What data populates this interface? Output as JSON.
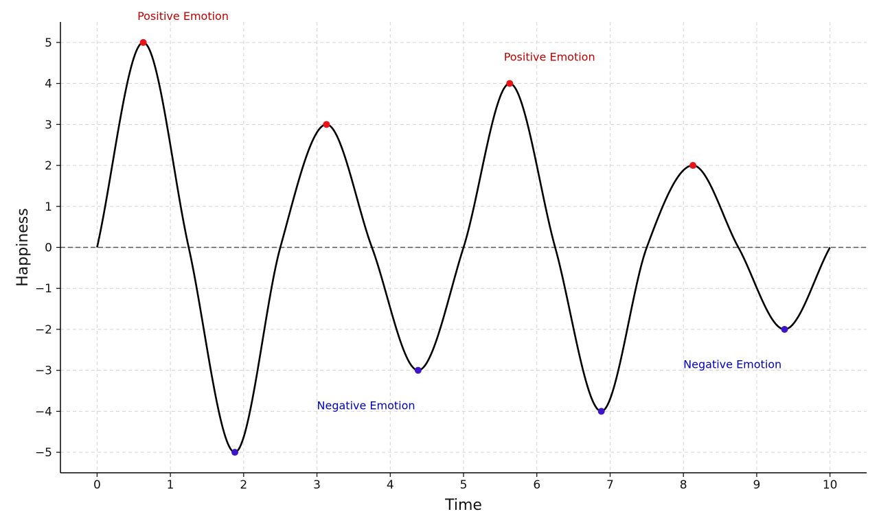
{
  "colors": {
    "curve": "#000000",
    "peak_marker": "#e8141a",
    "trough_marker": "#3d16c8",
    "positive_text": "#c00000",
    "negative_text": "#0000c0",
    "zero_line": "#555555",
    "grid": "#d3d3d3",
    "axis": "#000000"
  },
  "chart_data": {
    "type": "line",
    "title": "",
    "xlabel": "Time",
    "ylabel": "Happiness",
    "xlim": [
      -0.5,
      10.5
    ],
    "ylim": [
      -5.5,
      5.5
    ],
    "x_ticks": [
      0,
      1,
      2,
      3,
      4,
      5,
      6,
      7,
      8,
      9,
      10
    ],
    "y_ticks": [
      5,
      4,
      3,
      2,
      1,
      0,
      -1,
      -2,
      -3,
      -4,
      -5
    ],
    "x_tick_labels": [
      "0",
      "1",
      "2",
      "3",
      "4",
      "5",
      "6",
      "7",
      "8",
      "9",
      "10"
    ],
    "y_tick_labels": [
      "5",
      "4",
      "3",
      "2",
      "1",
      "0",
      "−1",
      "−2",
      "−3",
      "−4",
      "−5"
    ],
    "grid": true,
    "grid_style": "dashed",
    "reference_line": {
      "y": 0,
      "style": "dashed"
    },
    "series": [
      {
        "style": "solid",
        "x": [
          0,
          0.63,
          1.25,
          1.88,
          2.5,
          3.13,
          3.75,
          4.38,
          5.0,
          5.63,
          6.25,
          6.88,
          7.5,
          8.13,
          8.75,
          9.38,
          10.0
        ],
        "y": [
          0,
          5,
          0,
          -5,
          0,
          3,
          0,
          -3,
          0,
          4,
          0,
          -4,
          0,
          2,
          0,
          -2,
          0
        ]
      }
    ],
    "peaks": [
      {
        "x": 0.63,
        "y": 5
      },
      {
        "x": 3.13,
        "y": 3
      },
      {
        "x": 5.63,
        "y": 4
      },
      {
        "x": 8.13,
        "y": 2
      }
    ],
    "troughs": [
      {
        "x": 1.88,
        "y": -5
      },
      {
        "x": 4.38,
        "y": -3
      },
      {
        "x": 6.88,
        "y": -4
      },
      {
        "x": 9.38,
        "y": -2
      }
    ],
    "annotations": [
      {
        "text": "Positive Emotion",
        "x": 0.55,
        "y": 5.55,
        "kind": "positive"
      },
      {
        "text": "Positive Emotion",
        "x": 5.55,
        "y": 4.55,
        "kind": "positive"
      },
      {
        "text": "Negative Emotion",
        "x": 3.0,
        "y": -3.95,
        "kind": "negative"
      },
      {
        "text": "Negative Emotion",
        "x": 8.0,
        "y": -2.95,
        "kind": "negative"
      }
    ]
  }
}
